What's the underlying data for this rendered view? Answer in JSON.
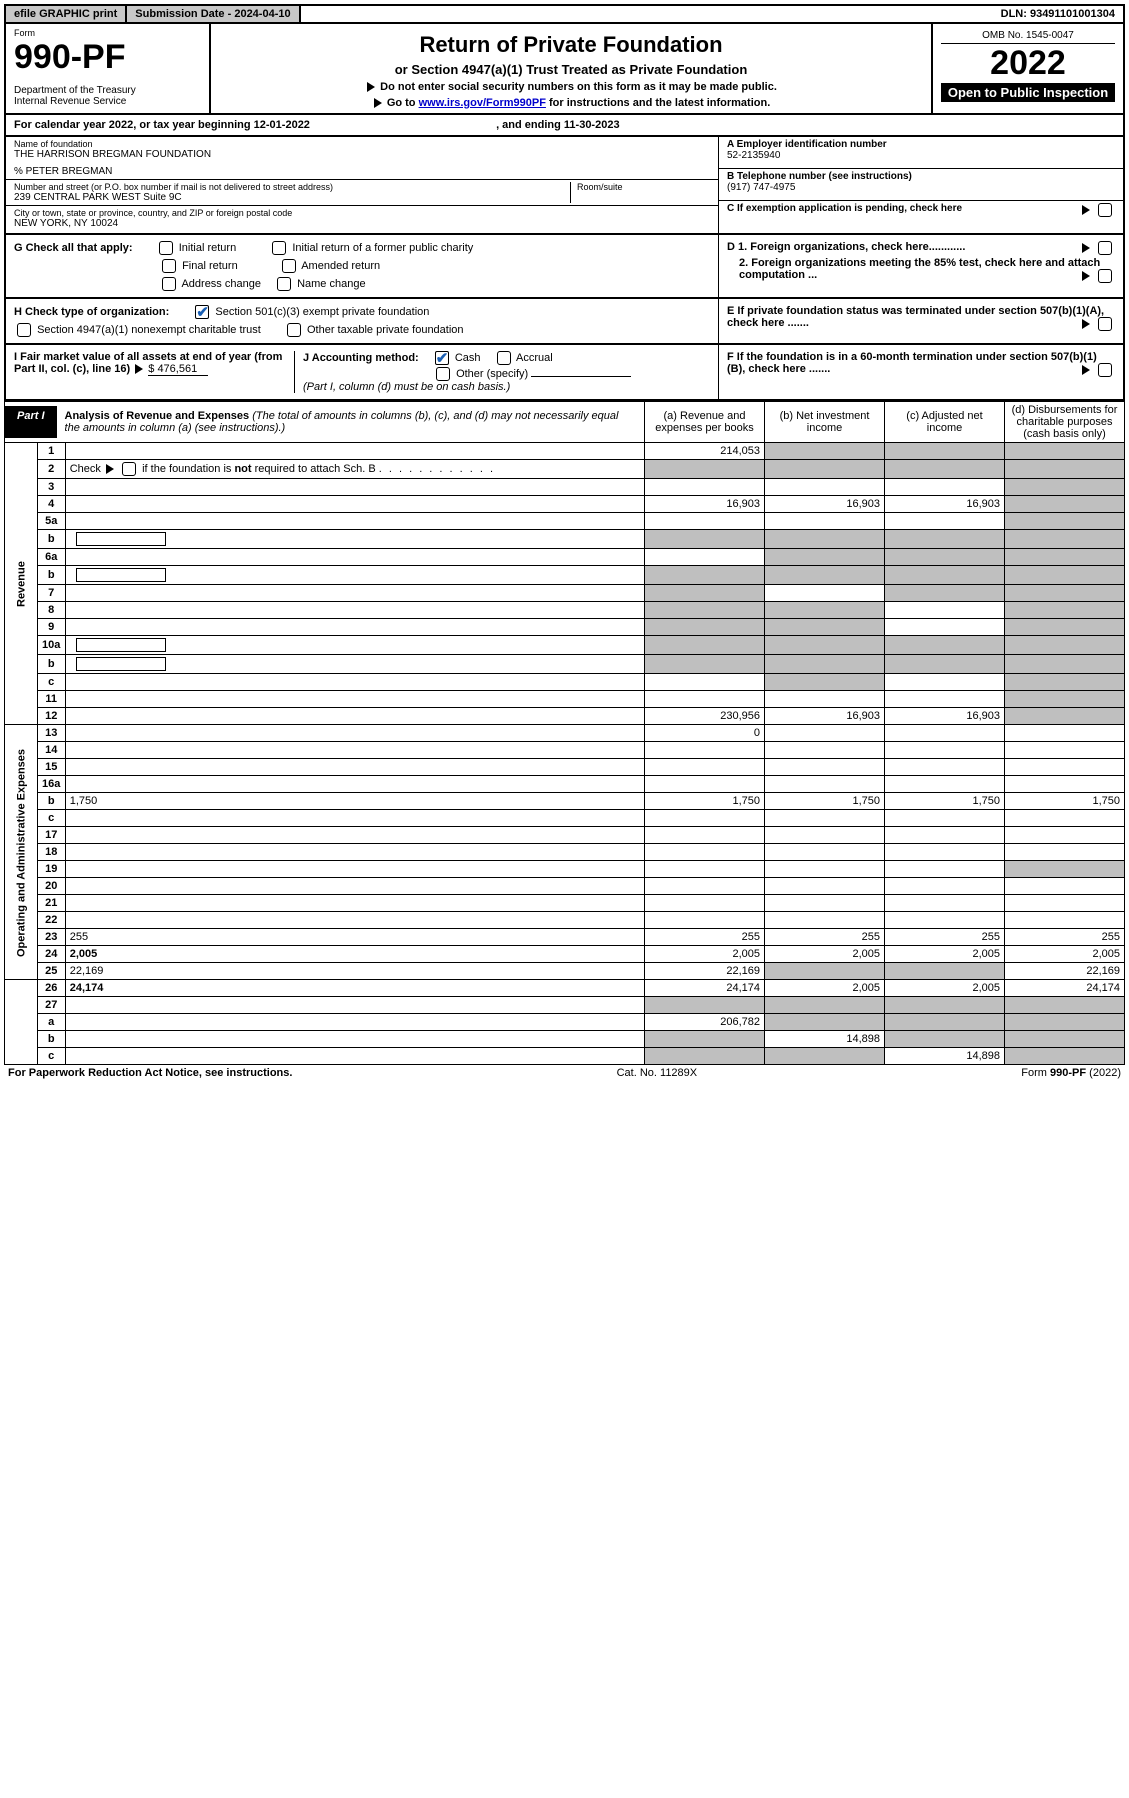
{
  "topbar": {
    "efile": "efile GRAPHIC print",
    "submission_label": "Submission Date - ",
    "submission_date": "2024-04-10",
    "dln_label": "DLN: ",
    "dln": "93491101001304"
  },
  "formhead": {
    "form_word": "Form",
    "form_number": "990-PF",
    "dept": "Department of the Treasury\nInternal Revenue Service",
    "title": "Return of Private Foundation",
    "subtitle": "or Section 4947(a)(1) Trust Treated as Private Foundation",
    "note1": "Do not enter social security numbers on this form as it may be made public.",
    "note2_prefix": "Go to ",
    "note2_link": "www.irs.gov/Form990PF",
    "note2_suffix": " for instructions and the latest information.",
    "omb": "OMB No. 1545-0047",
    "year": "2022",
    "open": "Open to Public Inspection"
  },
  "calendar": {
    "line": "For calendar year 2022, or tax year beginning ",
    "begin": "12-01-2022",
    "mid": ", and ending ",
    "end": "11-30-2023"
  },
  "name": {
    "lbl_name": "Name of foundation",
    "foundation": "THE HARRISON BREGMAN FOUNDATION",
    "care_of": "% PETER BREGMAN",
    "lbl_street": "Number and street (or P.O. box number if mail is not delivered to street address)",
    "street": "239 CENTRAL PARK WEST Suite 9C",
    "room_lbl": "Room/suite",
    "lbl_city": "City or town, state or province, country, and ZIP or foreign postal code",
    "city": "NEW YORK, NY  10024",
    "a_lbl": "A Employer identification number",
    "a_val": "52-2135940",
    "b_lbl": "B Telephone number (see instructions)",
    "b_val": "(917) 747-4975",
    "c_lbl": "C If exemption application is pending, check here"
  },
  "g": {
    "lbl": "G Check all that apply:",
    "opts": [
      "Initial return",
      "Final return",
      "Address change",
      "Initial return of a former public charity",
      "Amended return",
      "Name change"
    ]
  },
  "d": {
    "d1": "D 1. Foreign organizations, check here............",
    "d2": "2. Foreign organizations meeting the 85% test, check here and attach computation ..."
  },
  "h": {
    "lbl": "H Check type of organization:",
    "opt1": "Section 501(c)(3) exempt private foundation",
    "opt2": "Section 4947(a)(1) nonexempt charitable trust",
    "opt3": "Other taxable private foundation"
  },
  "e": {
    "txt": "E  If private foundation status was terminated under section 507(b)(1)(A), check here ......."
  },
  "i": {
    "lbl": "I Fair market value of all assets at end of year (from Part II, col. (c), line 16) ",
    "arrow": "▶",
    "val": "$  476,561"
  },
  "j": {
    "lbl": "J Accounting method:",
    "cash": "Cash",
    "accrual": "Accrual",
    "other": "Other (specify)",
    "note": "(Part I, column (d) must be on cash basis.)"
  },
  "f": {
    "txt": "F  If the foundation is in a 60-month termination under section 507(b)(1)(B), check here ......."
  },
  "part1": {
    "lbl": "Part I",
    "title": "Analysis of Revenue and Expenses",
    "title_note": " (The total of amounts in columns (b), (c), and (d) may not necessarily equal the amounts in column (a) (see instructions).)",
    "cols": {
      "a": "(a)  Revenue and expenses per books",
      "b": "(b)  Net investment income",
      "c": "(c)  Adjusted net income",
      "d": "(d)  Disbursements for charitable purposes (cash basis only)"
    }
  },
  "vlabels": {
    "rev": "Revenue",
    "exp": "Operating and Administrative Expenses"
  },
  "rows": [
    {
      "n": "1",
      "d": "",
      "a": "214,053",
      "b": "",
      "c": "",
      "bGray": true,
      "cGray": true,
      "dGray": true
    },
    {
      "n": "2",
      "d": "",
      "a": "",
      "b": "",
      "c": "",
      "aGray": true,
      "bGray": true,
      "cGray": true,
      "dGray": true,
      "isCheck": true
    },
    {
      "n": "3",
      "d": "",
      "a": "",
      "b": "",
      "c": "",
      "dGray": true
    },
    {
      "n": "4",
      "d": "",
      "a": "16,903",
      "b": "16,903",
      "c": "16,903",
      "dGray": true
    },
    {
      "n": "5a",
      "d": "",
      "a": "",
      "b": "",
      "c": "",
      "dGray": true
    },
    {
      "n": "b",
      "d": "",
      "a": "",
      "b": "",
      "c": "",
      "aGray": true,
      "bGray": true,
      "cGray": true,
      "dGray": true,
      "hasBlankBox": true
    },
    {
      "n": "6a",
      "d": "",
      "a": "",
      "b": "",
      "c": "",
      "bGray": true,
      "cGray": true,
      "dGray": true
    },
    {
      "n": "b",
      "d": "",
      "a": "",
      "b": "",
      "c": "",
      "aGray": true,
      "bGray": true,
      "cGray": true,
      "dGray": true,
      "hasBlankBox": true
    },
    {
      "n": "7",
      "d": "",
      "a": "",
      "b": "",
      "c": "",
      "aGray": true,
      "cGray": true,
      "dGray": true
    },
    {
      "n": "8",
      "d": "",
      "a": "",
      "b": "",
      "c": "",
      "aGray": true,
      "bGray": true,
      "dGray": true
    },
    {
      "n": "9",
      "d": "",
      "a": "",
      "b": "",
      "c": "",
      "aGray": true,
      "bGray": true,
      "dGray": true
    },
    {
      "n": "10a",
      "d": "",
      "a": "",
      "b": "",
      "c": "",
      "aGray": true,
      "bGray": true,
      "cGray": true,
      "dGray": true,
      "hasBlankBox": true
    },
    {
      "n": "b",
      "d": "",
      "a": "",
      "b": "",
      "c": "",
      "aGray": true,
      "bGray": true,
      "cGray": true,
      "dGray": true,
      "hasBlankBox": true
    },
    {
      "n": "c",
      "d": "",
      "a": "",
      "b": "",
      "c": "",
      "bGray": true,
      "dGray": true
    },
    {
      "n": "11",
      "d": "",
      "a": "",
      "b": "",
      "c": "",
      "dGray": true
    },
    {
      "n": "12",
      "d": "",
      "a": "230,956",
      "b": "16,903",
      "c": "16,903",
      "bold": true,
      "dGray": true
    },
    {
      "n": "13",
      "d": "",
      "a": "0",
      "b": "",
      "c": ""
    },
    {
      "n": "14",
      "d": "",
      "a": "",
      "b": "",
      "c": ""
    },
    {
      "n": "15",
      "d": "",
      "a": "",
      "b": "",
      "c": ""
    },
    {
      "n": "16a",
      "d": "",
      "a": "",
      "b": "",
      "c": ""
    },
    {
      "n": "b",
      "d": "1,750",
      "a": "1,750",
      "b": "1,750",
      "c": "1,750"
    },
    {
      "n": "c",
      "d": "",
      "a": "",
      "b": "",
      "c": ""
    },
    {
      "n": "17",
      "d": "",
      "a": "",
      "b": "",
      "c": ""
    },
    {
      "n": "18",
      "d": "",
      "a": "",
      "b": "",
      "c": ""
    },
    {
      "n": "19",
      "d": "",
      "a": "",
      "b": "",
      "c": "",
      "dGray": true
    },
    {
      "n": "20",
      "d": "",
      "a": "",
      "b": "",
      "c": ""
    },
    {
      "n": "21",
      "d": "",
      "a": "",
      "b": "",
      "c": ""
    },
    {
      "n": "22",
      "d": "",
      "a": "",
      "b": "",
      "c": ""
    },
    {
      "n": "23",
      "d": "255",
      "a": "255",
      "b": "255",
      "c": "255"
    },
    {
      "n": "24",
      "d": "2,005",
      "a": "2,005",
      "b": "2,005",
      "c": "2,005",
      "bold": true
    },
    {
      "n": "25",
      "d": "22,169",
      "a": "22,169",
      "b": "",
      "c": "",
      "bGray": true,
      "cGray": true
    },
    {
      "n": "26",
      "d": "24,174",
      "a": "24,174",
      "b": "2,005",
      "c": "2,005",
      "bold": true
    },
    {
      "n": "27",
      "d": "",
      "a": "",
      "b": "",
      "c": "",
      "aGray": true,
      "bGray": true,
      "cGray": true,
      "dGray": true
    },
    {
      "n": "a",
      "d": "",
      "a": "206,782",
      "b": "",
      "c": "",
      "bold": true,
      "bGray": true,
      "cGray": true,
      "dGray": true
    },
    {
      "n": "b",
      "d": "",
      "a": "",
      "b": "14,898",
      "c": "",
      "bold": true,
      "aGray": true,
      "cGray": true,
      "dGray": true
    },
    {
      "n": "c",
      "d": "",
      "a": "",
      "b": "",
      "c": "14,898",
      "bold": true,
      "aGray": true,
      "bGray": true,
      "dGray": true
    }
  ],
  "footer": {
    "left": "For Paperwork Reduction Act Notice, see instructions.",
    "mid": "Cat. No. 11289X",
    "right": "Form 990-PF (2022)"
  },
  "colors": {
    "gray": "#bfbfbf",
    "headergray": "#c8c8c8",
    "link": "#0000cc",
    "check": "#1a5fb4"
  }
}
